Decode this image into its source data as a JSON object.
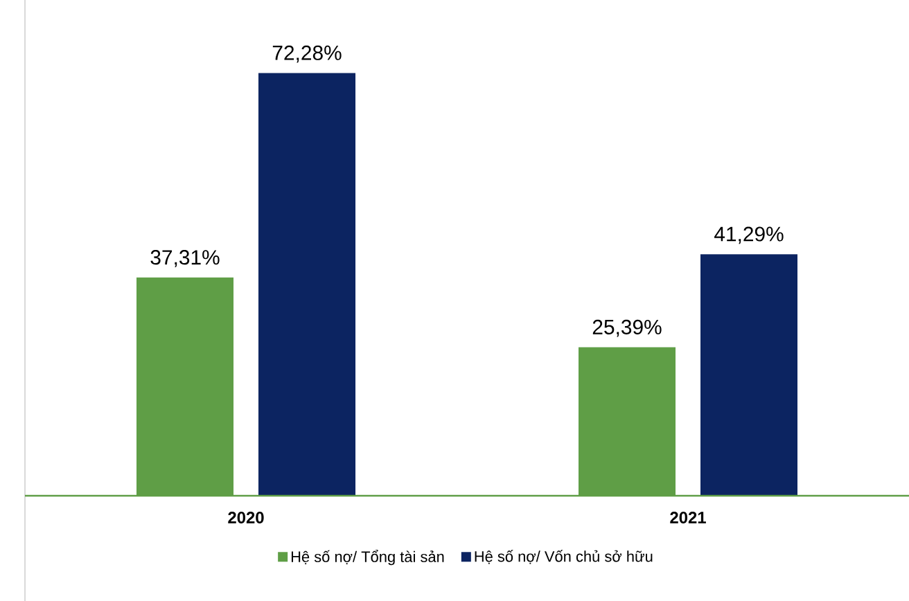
{
  "chart_data": {
    "type": "bar",
    "categories": [
      "2020",
      "2021"
    ],
    "series": [
      {
        "name": "Hệ số nợ/ Tổng tài sản",
        "color": "#5f9e46",
        "values": [
          37.31,
          25.39
        ],
        "value_labels": [
          "37,31%",
          "25,39%"
        ]
      },
      {
        "name": "Hệ số nợ/ Vốn chủ sở hữu",
        "color": "#0c2461",
        "values": [
          72.28,
          41.29
        ],
        "value_labels": [
          "72,28%",
          "41,29%"
        ]
      }
    ],
    "legend": "bottom"
  }
}
